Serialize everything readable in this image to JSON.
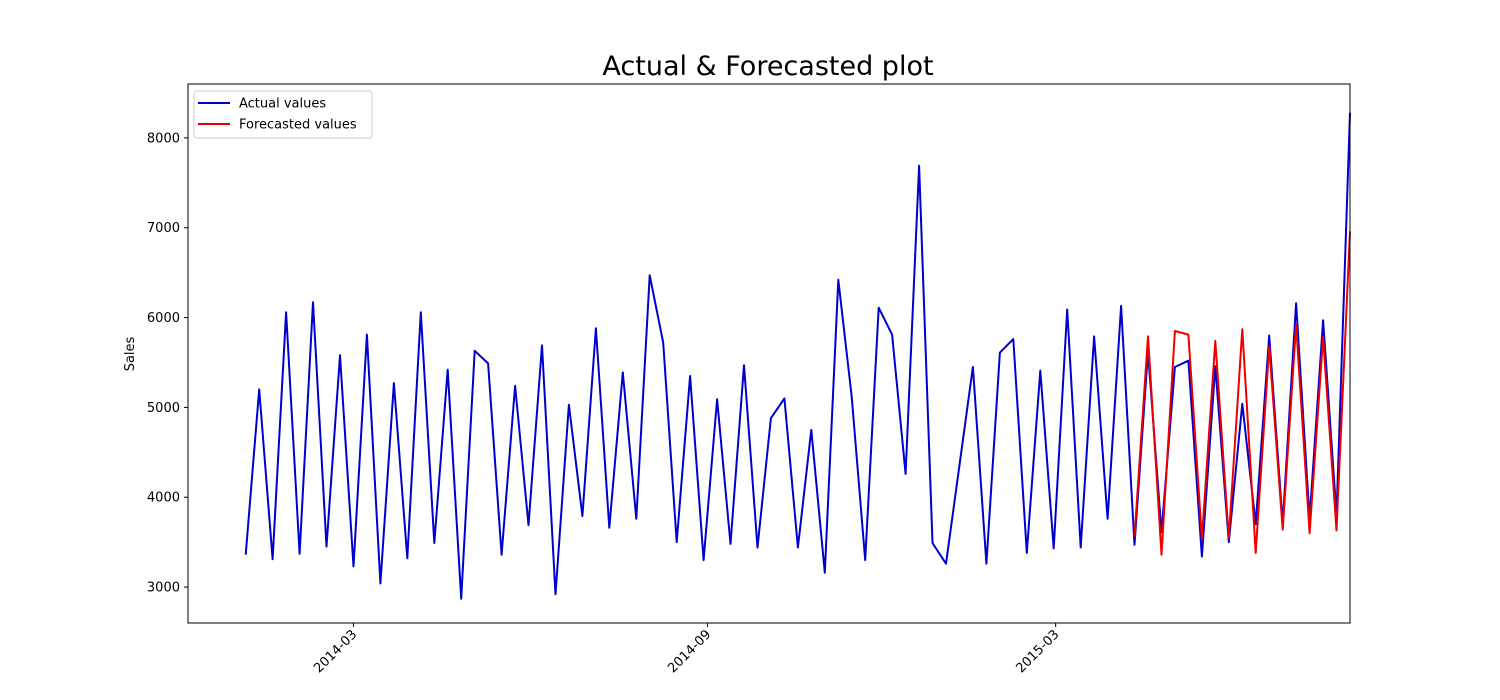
{
  "chart_data": {
    "type": "line",
    "title": "Actual & Forecasted plot",
    "xlabel": "",
    "ylabel": "Sales",
    "ylim": [
      2600,
      8600
    ],
    "xlim": [
      "2013-12-05",
      "2015-08-01"
    ],
    "grid": false,
    "legend_position": "top-left",
    "x_ticks": [
      {
        "date": "2014-03-01",
        "label": "2014-03"
      },
      {
        "date": "2014-09-01",
        "label": "2014-09"
      },
      {
        "date": "2015-03-01",
        "label": "2015-03"
      }
    ],
    "y_ticks": [
      3000,
      4000,
      5000,
      6000,
      7000,
      8000
    ],
    "series": [
      {
        "name": "Actual values",
        "color": "#0000cc",
        "points": [
          [
            "2014-01-04",
            3360
          ],
          [
            "2014-01-11",
            5200
          ],
          [
            "2014-01-18",
            3310
          ],
          [
            "2014-01-25",
            6060
          ],
          [
            "2014-02-01",
            3370
          ],
          [
            "2014-02-08",
            6170
          ],
          [
            "2014-02-15",
            3450
          ],
          [
            "2014-02-22",
            5580
          ],
          [
            "2014-03-01",
            3230
          ],
          [
            "2014-03-08",
            5810
          ],
          [
            "2014-03-15",
            3040
          ],
          [
            "2014-03-22",
            5270
          ],
          [
            "2014-03-29",
            3320
          ],
          [
            "2014-04-05",
            6060
          ],
          [
            "2014-04-12",
            3490
          ],
          [
            "2014-04-19",
            5420
          ],
          [
            "2014-04-26",
            2870
          ],
          [
            "2014-05-03",
            5630
          ],
          [
            "2014-05-10",
            5490
          ],
          [
            "2014-05-17",
            3360
          ],
          [
            "2014-05-24",
            5240
          ],
          [
            "2014-05-31",
            3690
          ],
          [
            "2014-06-07",
            5690
          ],
          [
            "2014-06-14",
            2920
          ],
          [
            "2014-06-21",
            5030
          ],
          [
            "2014-06-28",
            3790
          ],
          [
            "2014-07-05",
            5880
          ],
          [
            "2014-07-12",
            3660
          ],
          [
            "2014-07-19",
            5390
          ],
          [
            "2014-07-26",
            3760
          ],
          [
            "2014-08-02",
            6470
          ],
          [
            "2014-08-09",
            5720
          ],
          [
            "2014-08-16",
            3500
          ],
          [
            "2014-08-23",
            5350
          ],
          [
            "2014-08-30",
            3300
          ],
          [
            "2014-09-06",
            5090
          ],
          [
            "2014-09-13",
            3480
          ],
          [
            "2014-09-20",
            5470
          ],
          [
            "2014-09-27",
            3440
          ],
          [
            "2014-10-04",
            4880
          ],
          [
            "2014-10-11",
            5100
          ],
          [
            "2014-10-18",
            3440
          ],
          [
            "2014-10-25",
            4750
          ],
          [
            "2014-11-01",
            3160
          ],
          [
            "2014-11-08",
            6420
          ],
          [
            "2014-11-15",
            5120
          ],
          [
            "2014-11-22",
            3300
          ],
          [
            "2014-11-29",
            6110
          ],
          [
            "2014-12-06",
            5810
          ],
          [
            "2014-12-13",
            4260
          ],
          [
            "2014-12-20",
            7690
          ],
          [
            "2014-12-27",
            3490
          ],
          [
            "2015-01-03",
            3260
          ],
          [
            "2015-01-17",
            5450
          ],
          [
            "2015-01-24",
            3260
          ],
          [
            "2015-01-31",
            5610
          ],
          [
            "2015-02-07",
            5760
          ],
          [
            "2015-02-14",
            3380
          ],
          [
            "2015-02-21",
            5410
          ],
          [
            "2015-02-28",
            3430
          ],
          [
            "2015-03-07",
            6090
          ],
          [
            "2015-03-14",
            3440
          ],
          [
            "2015-03-21",
            5790
          ],
          [
            "2015-03-28",
            3760
          ],
          [
            "2015-04-04",
            6130
          ],
          [
            "2015-04-11",
            3470
          ],
          [
            "2015-04-18",
            5620
          ],
          [
            "2015-04-25",
            3610
          ],
          [
            "2015-05-02",
            5450
          ],
          [
            "2015-05-09",
            5520
          ],
          [
            "2015-05-16",
            3340
          ],
          [
            "2015-05-23",
            5460
          ],
          [
            "2015-05-30",
            3500
          ],
          [
            "2015-06-06",
            5040
          ],
          [
            "2015-06-13",
            3700
          ],
          [
            "2015-06-20",
            5800
          ],
          [
            "2015-06-27",
            3710
          ],
          [
            "2015-07-04",
            6160
          ],
          [
            "2015-07-11",
            3760
          ],
          [
            "2015-07-18",
            5970
          ],
          [
            "2015-07-25",
            3800
          ],
          [
            "2015-08-01",
            8280
          ]
        ]
      },
      {
        "name": "Forecasted values",
        "color": "#ee0000",
        "points": [
          [
            "2015-04-11",
            3560
          ],
          [
            "2015-04-18",
            5790
          ],
          [
            "2015-04-25",
            3360
          ],
          [
            "2015-05-02",
            5850
          ],
          [
            "2015-05-09",
            5810
          ],
          [
            "2015-05-16",
            3540
          ],
          [
            "2015-05-23",
            5740
          ],
          [
            "2015-05-30",
            3550
          ],
          [
            "2015-06-06",
            5870
          ],
          [
            "2015-06-13",
            3380
          ],
          [
            "2015-06-20",
            5680
          ],
          [
            "2015-06-27",
            3640
          ],
          [
            "2015-07-04",
            5920
          ],
          [
            "2015-07-11",
            3600
          ],
          [
            "2015-07-18",
            5780
          ],
          [
            "2015-07-25",
            3630
          ],
          [
            "2015-08-01",
            6960
          ]
        ]
      }
    ]
  }
}
